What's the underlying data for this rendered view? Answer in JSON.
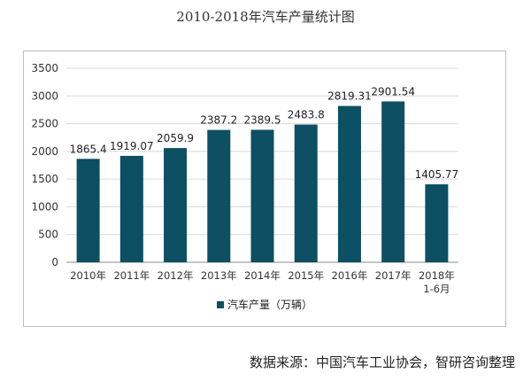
{
  "chart_data": {
    "type": "bar",
    "title": "2010-2018年汽车产量统计图",
    "categories": [
      "2010年",
      "2011年",
      "2012年",
      "2013年",
      "2014年",
      "2015年",
      "2016年",
      "2017年",
      "2018年\n1-6月"
    ],
    "series": [
      {
        "name": "汽车产量（万辆）",
        "values": [
          1865.4,
          1919.07,
          2059.9,
          2387.2,
          2389.5,
          2483.8,
          2819.31,
          2901.54,
          1405.77
        ],
        "labels": [
          "1865.4",
          "1919.07",
          "2059.9",
          "2387.2",
          "2389.5",
          "2483.8",
          "2819.31",
          "2901.54",
          "1405.77"
        ]
      }
    ],
    "ylim": [
      0,
      3500
    ],
    "yticks": [
      0,
      500,
      1000,
      1500,
      2000,
      2500,
      3000,
      3500
    ],
    "grid": true,
    "legend": "bottom",
    "colors": {
      "bar": "#0d4f63",
      "grid": "#d9d9d9",
      "axis": "#8c8c8c"
    }
  },
  "source": "数据来源：中国汽车工业协会，智研咨询整理"
}
